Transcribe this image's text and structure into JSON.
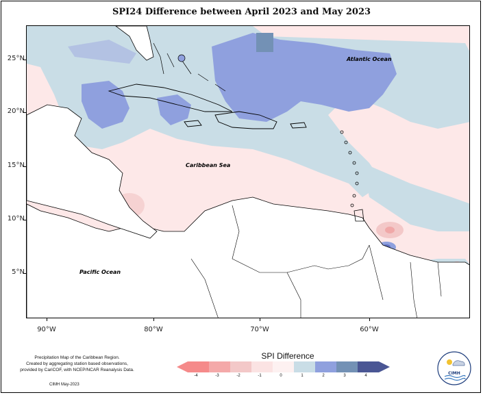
{
  "title": "SPI24 Difference between April 2023 and May 2023",
  "map": {
    "lat_labels": [
      "25°N",
      "20°N",
      "15°N",
      "10°N",
      "5°N"
    ],
    "lon_labels": [
      "90°W",
      "80°W",
      "70°W",
      "60°W"
    ],
    "places": {
      "atlantic": "Atlantic Ocean",
      "caribbean": "Caribbean Sea",
      "pacific": "Pacific Ocean"
    }
  },
  "legend": {
    "title": "SPI Difference",
    "ticks": [
      "-4",
      "-3",
      "-2",
      "-1",
      "0",
      "1",
      "2",
      "3",
      "4"
    ],
    "colors": {
      "m4": "#f58a8a",
      "m3": "#f4a9a9",
      "m2": "#f3c8c8",
      "m1": "#fbe3e3",
      "p0": "#fdf1f1",
      "p1": "#c9dde6",
      "p2": "#8fa0de",
      "p3": "#7391b5",
      "p4": "#4a5694"
    }
  },
  "credit": {
    "line1": "Precipitation Map of the Caribbean Region.",
    "line2": "Created by aggregating station based observations,",
    "line3": "provided by CariCOF, with NCEP/NCAR Reanalysis Data.",
    "footer": "CIMH May-2023"
  },
  "logo": {
    "text": "CIMH"
  }
}
